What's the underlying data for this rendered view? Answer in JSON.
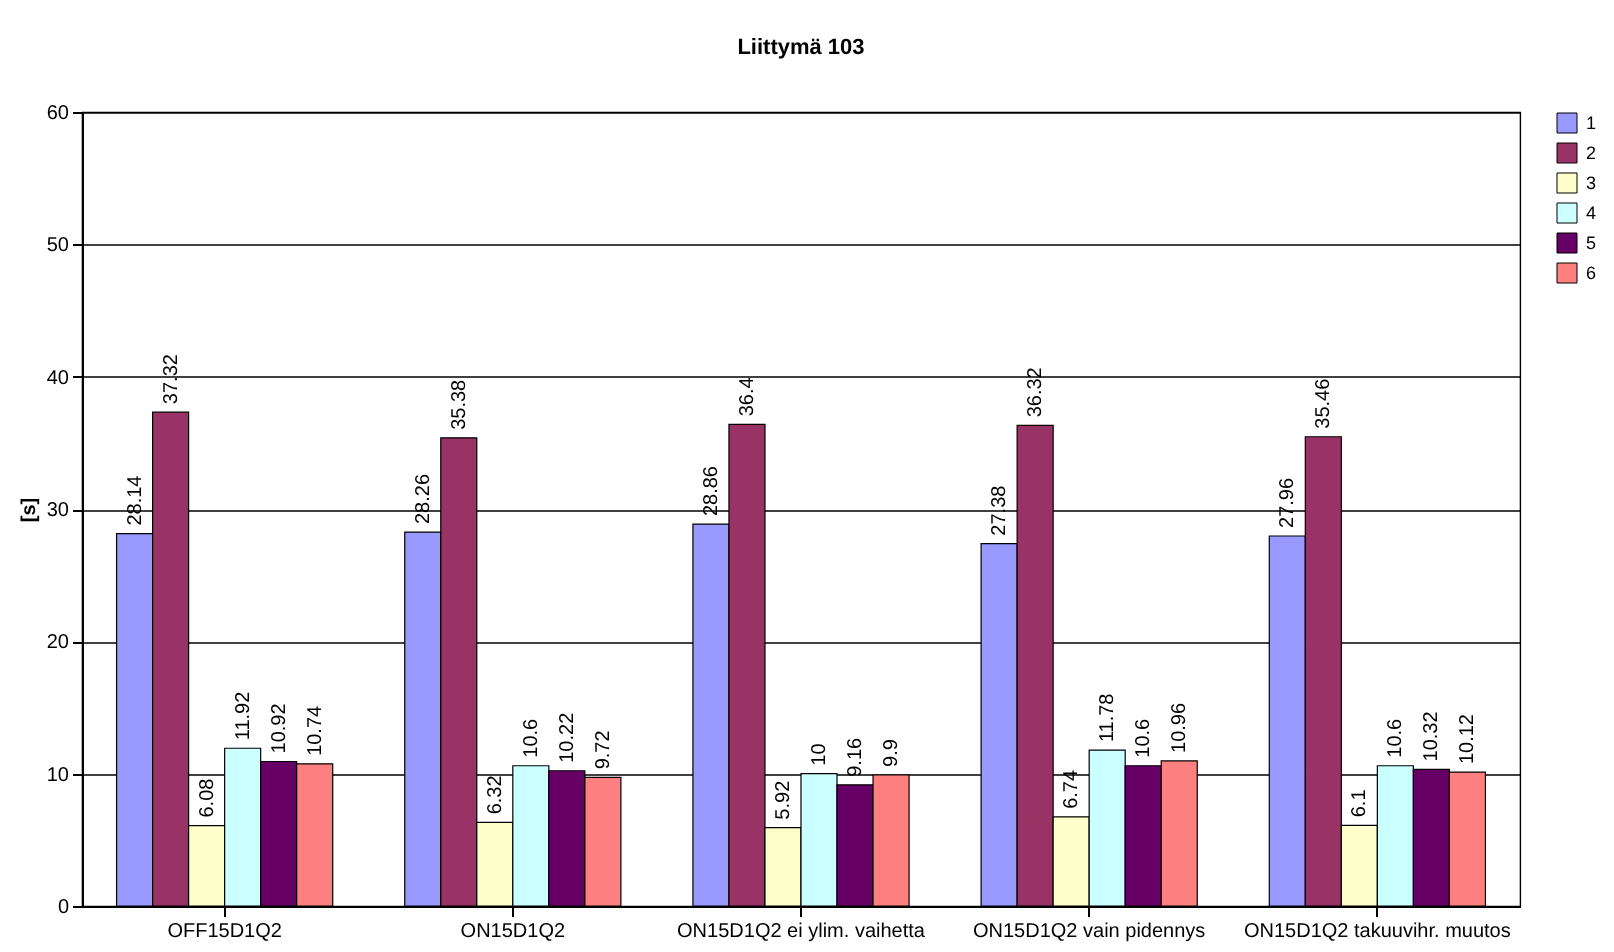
{
  "chart_data": {
    "type": "bar",
    "title": "Liittymä 103",
    "ylabel": "[s]",
    "categories": [
      "OFF15D1Q2",
      "ON15D1Q2",
      "ON15D1Q2 ei ylim. vaihetta",
      "ON15D1Q2 vain pidennys",
      "ON15D1Q2 takuuvihr. muutos"
    ],
    "series": [
      {
        "name": "1",
        "color": "#9999ff",
        "values": [
          28.14,
          28.26,
          28.86,
          27.38,
          27.96
        ]
      },
      {
        "name": "2",
        "color": "#993366",
        "values": [
          37.32,
          35.38,
          36.4,
          36.32,
          35.46
        ]
      },
      {
        "name": "3",
        "color": "#ffffcc",
        "values": [
          6.08,
          6.32,
          5.92,
          6.74,
          6.1
        ]
      },
      {
        "name": "4",
        "color": "#ccffff",
        "values": [
          11.92,
          10.6,
          10,
          11.78,
          10.6
        ]
      },
      {
        "name": "5",
        "color": "#660066",
        "values": [
          10.92,
          10.22,
          9.16,
          10.6,
          10.32
        ]
      },
      {
        "name": "6",
        "color": "#ff8080",
        "values": [
          10.74,
          9.72,
          9.9,
          10.96,
          10.12
        ]
      }
    ],
    "ylim": [
      0,
      60
    ],
    "yticks": [
      0,
      10,
      20,
      30,
      40,
      50,
      60
    ],
    "grid": "y",
    "legend": "right",
    "data_labels": true
  }
}
